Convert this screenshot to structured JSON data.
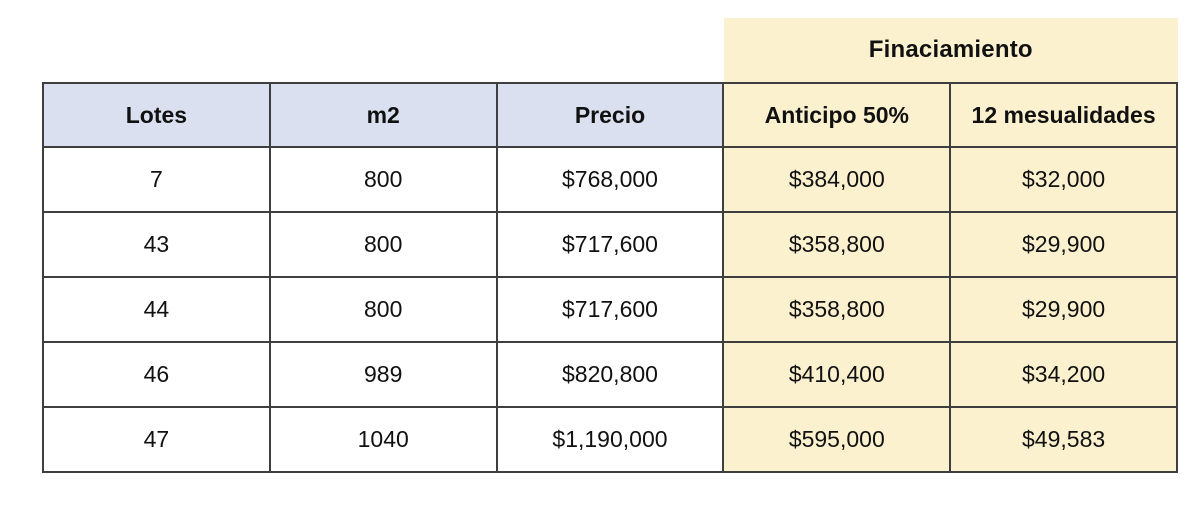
{
  "chart_data": {
    "type": "table",
    "title": "Finaciamiento",
    "group_header": {
      "label": "Finaciamiento",
      "spans_columns": [
        "Anticipo 50%",
        "12 mesualidades"
      ]
    },
    "columns": [
      "Lotes",
      "m2",
      "Precio",
      "Anticipo 50%",
      "12 mesualidades"
    ],
    "rows": [
      [
        "7",
        "800",
        "$768,000",
        "$384,000",
        "$32,000"
      ],
      [
        "43",
        "800",
        "$717,600",
        "$358,800",
        "$29,900"
      ],
      [
        "44",
        "800",
        "$717,600",
        "$358,800",
        "$29,900"
      ],
      [
        "46",
        "989",
        "$820,800",
        "$410,400",
        "$34,200"
      ],
      [
        "47",
        "1040",
        "$1,190,000",
        "$595,000",
        "$49,583"
      ]
    ]
  },
  "colors": {
    "header_bg": "#dbe0f1",
    "finance_bg": "#fbf1cf",
    "border": "#3f3f3f",
    "text": "#111111"
  }
}
